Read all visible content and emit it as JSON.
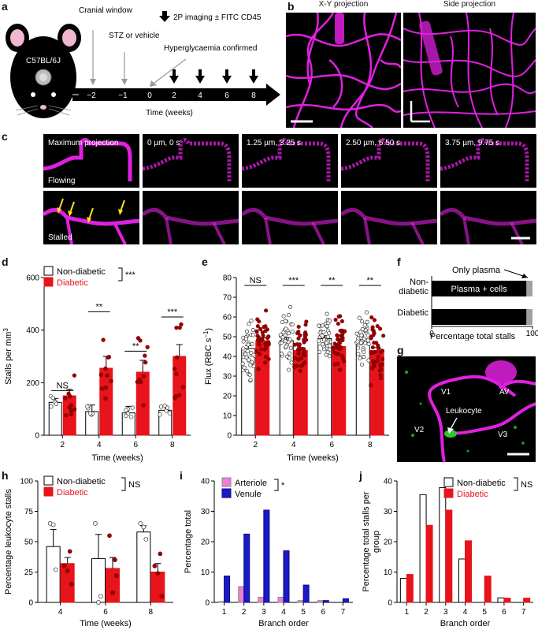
{
  "figure": {
    "panel_labels": [
      "a",
      "b",
      "c",
      "d",
      "e",
      "f",
      "g",
      "h",
      "i",
      "j"
    ]
  },
  "panel_a": {
    "mouse_strain": "C57BL/6J",
    "events": {
      "cranial_window": "Cranial window",
      "stz": "STZ or vehicle",
      "imaging": "2P imaging ± FITC CD45",
      "hyperglycaemia": "Hyperglycaemia confirmed"
    },
    "timeline_ticks": [
      "−2",
      "−1",
      "0",
      "2",
      "4",
      "6",
      "8"
    ],
    "time_label": "Time (weeks)"
  },
  "panel_b": {
    "left_title": "X-Y projection",
    "right_title": "Side projection"
  },
  "panel_c": {
    "column_titles": [
      "Maximum projection",
      "0 µm, 0 s",
      "1.25 µm, 3.25 s",
      "2.50 µm, 6.50 s",
      "3.75 µm, 9.75 s"
    ],
    "row_labels": [
      "Flowing",
      "Stalled"
    ]
  },
  "panel_g": {
    "labels": [
      "V1",
      "AV",
      "V2",
      "Leukocyte",
      "V3"
    ]
  },
  "colors": {
    "diabetic": "#e8131b",
    "non_diabetic": "#ffffff",
    "arteriole": "#f07cd8",
    "venule": "#1a1ac8",
    "magenta": "#e020e0",
    "plasma_cells": "#000000",
    "only_plasma": "#a0a0a0"
  },
  "chart_data": [
    {
      "id": "d",
      "type": "bar",
      "categories": [
        "2",
        "4",
        "6",
        "8"
      ],
      "series": [
        {
          "name": "Non-diabetic",
          "values": [
            125,
            90,
            85,
            95
          ]
        },
        {
          "name": "Diabetic",
          "values": [
            150,
            255,
            240,
            300
          ]
        }
      ],
      "xlabel": "Time (weeks)",
      "ylabel": "Stalls per mm",
      "ylabel_sup": "3",
      "ylim": [
        0,
        600
      ],
      "yticks": [
        0,
        200,
        400,
        600
      ],
      "significance": [
        "NS",
        "**",
        "**",
        "***"
      ],
      "overall_significance": "***",
      "legend": [
        "Non-diabetic",
        "Diabetic"
      ]
    },
    {
      "id": "e",
      "type": "bar",
      "categories": [
        "2",
        "4",
        "6",
        "8"
      ],
      "series": [
        {
          "name": "Non-diabetic",
          "values": [
            44,
            48,
            49,
            47
          ]
        },
        {
          "name": "Diabetic",
          "values": [
            48,
            43,
            45,
            43
          ]
        }
      ],
      "xlabel": "Time (weeks)",
      "ylabel": "Flux (RBC s",
      "ylabel_sup": "−1",
      "ylabel_end": ")",
      "ylim": [
        0,
        80
      ],
      "yticks": [
        0,
        10,
        20,
        30,
        40,
        50,
        60,
        70,
        80
      ],
      "significance": [
        "NS",
        "***",
        "**",
        "**"
      ]
    },
    {
      "id": "f",
      "type": "bar",
      "categories": [
        "Non-diabetic",
        "Diabetic"
      ],
      "category_lines": [
        [
          "Non-",
          "diabetic"
        ],
        [
          "Diabetic"
        ]
      ],
      "series": [
        {
          "name": "Plasma + cells",
          "values": [
            94,
            94
          ]
        },
        {
          "name": "Only plasma",
          "values": [
            6,
            6
          ]
        }
      ],
      "xlabel": "Percentage total stalls",
      "xlim": [
        0,
        100
      ],
      "xticks": [
        0,
        100
      ],
      "annotation": "Only plasma",
      "bar_text": "Plasma + cells"
    },
    {
      "id": "h",
      "type": "bar",
      "categories": [
        "4",
        "6",
        "8"
      ],
      "series": [
        {
          "name": "Non-diabetic",
          "values": [
            46,
            36,
            58
          ]
        },
        {
          "name": "Diabetic",
          "values": [
            32,
            28,
            25
          ]
        }
      ],
      "xlabel": "Time (weeks)",
      "ylabel": "Percentage leukocyte stalls",
      "ylim": [
        0,
        100
      ],
      "yticks": [
        0,
        25,
        50,
        75,
        100
      ],
      "legend": [
        "Non-diabetic",
        "Diabetic"
      ],
      "overall_significance": "NS"
    },
    {
      "id": "i",
      "type": "bar",
      "categories": [
        "1",
        "2",
        "3",
        "4",
        "5",
        "6",
        "7"
      ],
      "series": [
        {
          "name": "Arteriole",
          "values": [
            0.3,
            5.2,
            1.7,
            1.7,
            0.6,
            0.6,
            0
          ]
        },
        {
          "name": "Venule",
          "values": [
            8.7,
            22.5,
            30.4,
            17.0,
            5.7,
            0.6,
            1.2
          ]
        }
      ],
      "xlabel": "Branch order",
      "ylabel": "Percentage total",
      "ylim": [
        0,
        40
      ],
      "yticks": [
        0,
        10,
        20,
        30,
        40
      ],
      "legend": [
        "Arteriole",
        "Venule"
      ],
      "overall_significance": "*"
    },
    {
      "id": "j",
      "type": "bar",
      "categories": [
        "1",
        "2",
        "3",
        "4",
        "5",
        "6",
        "7"
      ],
      "series": [
        {
          "name": "Non-diabetic",
          "values": [
            7.9,
            35.5,
            37.8,
            14.3,
            0,
            1.5,
            0
          ]
        },
        {
          "name": "Diabetic",
          "values": [
            9.2,
            25.4,
            30.4,
            20.3,
            8.7,
            1.4,
            1.4
          ]
        }
      ],
      "xlabel": "Branch order",
      "ylabel": "Percentage total stalls per",
      "ylabel2": "group",
      "ylim": [
        0,
        40
      ],
      "yticks": [
        0,
        10,
        20,
        30,
        40
      ],
      "legend": [
        "Non-diabetic",
        "Diabetic"
      ],
      "overall_significance": "NS"
    }
  ]
}
